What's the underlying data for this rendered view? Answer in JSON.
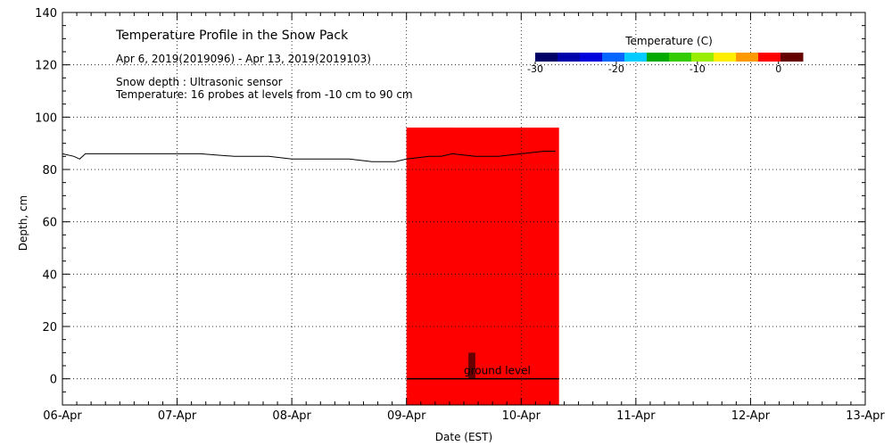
{
  "chart_data": {
    "type": "heatmap",
    "title": "Temperature Profile in the Snow Pack",
    "subtitle": "Apr  6, 2019(2019096) - Apr 13, 2019(2019103)",
    "annotations": [
      "Snow depth : Ultrasonic sensor",
      "Temperature: 16 probes at levels from -10 cm to 90 cm"
    ],
    "xlabel": "Date (EST)",
    "ylabel": "Depth, cm",
    "x_ticks": [
      "06-Apr",
      "07-Apr",
      "08-Apr",
      "09-Apr",
      "10-Apr",
      "11-Apr",
      "12-Apr",
      "13-Apr"
    ],
    "xlim_days": [
      6,
      13
    ],
    "ylim": [
      -10,
      140
    ],
    "y_ticks": [
      0,
      20,
      40,
      60,
      80,
      100,
      120,
      140
    ],
    "grid": true,
    "ground_label": "ground level",
    "colorbar": {
      "title": "Temperature (C)",
      "range": [
        -30,
        3
      ],
      "ticks": [
        -30,
        -20,
        -10,
        0
      ],
      "tick_labels": [
        "-30",
        "-20",
        "-10",
        "0"
      ],
      "colors": [
        "#000066",
        "#0000aa",
        "#0000dd",
        "#0066ff",
        "#00ccff",
        "#00aa00",
        "#33cc00",
        "#99ee00",
        "#ffee00",
        "#ff9900",
        "#ff0000",
        "#660000"
      ]
    },
    "snow_depth": [
      [
        6.0,
        86
      ],
      [
        6.1,
        85
      ],
      [
        6.15,
        84
      ],
      [
        6.2,
        86
      ],
      [
        6.3,
        86
      ],
      [
        6.5,
        86
      ],
      [
        6.8,
        86
      ],
      [
        7.0,
        86
      ],
      [
        7.2,
        86
      ],
      [
        7.5,
        85
      ],
      [
        7.8,
        85
      ],
      [
        8.0,
        84
      ],
      [
        8.2,
        84
      ],
      [
        8.5,
        84
      ],
      [
        8.7,
        83
      ],
      [
        8.9,
        83
      ],
      [
        9.0,
        84
      ],
      [
        9.2,
        85
      ],
      [
        9.3,
        85
      ],
      [
        9.4,
        86
      ],
      [
        9.6,
        85
      ],
      [
        9.8,
        85
      ],
      [
        10.0,
        86
      ],
      [
        10.2,
        87
      ],
      [
        10.3,
        87
      ]
    ],
    "temperature_blocks": [
      {
        "x0": 9.0,
        "x1": 9.42,
        "y0": 75,
        "y1": 96,
        "temp": -1
      },
      {
        "x0": 9.0,
        "x1": 9.42,
        "y0": 61,
        "y1": 78,
        "temp": -0.5
      },
      {
        "x0": 9.0,
        "x1": 10.33,
        "y0": -10,
        "y1": 96,
        "temp": 0
      },
      {
        "x0": 9.54,
        "x1": 9.6,
        "y0": 0,
        "y1": 10,
        "temp": 2
      }
    ]
  }
}
